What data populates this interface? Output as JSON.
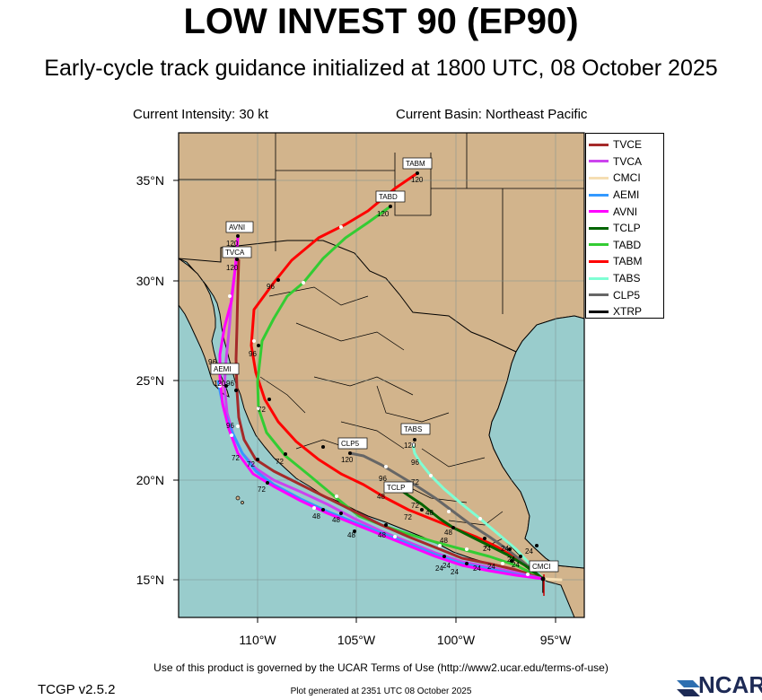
{
  "title": "LOW INVEST 90 (EP90)",
  "subtitle": "Early-cycle track guidance initialized at 1800 UTC, 08 October 2025",
  "current_intensity": "Current Intensity: 30 kt",
  "current_basin": "Current Basin: Northeast Pacific",
  "lon_ticks": [
    "110°W",
    "105°W",
    "100°W",
    "95°W"
  ],
  "lat_ticks": [
    "35°N",
    "30°N",
    "25°N",
    "20°N",
    "15°N"
  ],
  "legend": [
    {
      "name": "TVCE",
      "color": "#a52a2a"
    },
    {
      "name": "TVCA",
      "color": "#cc44ee"
    },
    {
      "name": "CMCI",
      "color": "#f5deb3"
    },
    {
      "name": "AEMI",
      "color": "#3399ff"
    },
    {
      "name": "AVNI",
      "color": "#ff00ff"
    },
    {
      "name": "TCLP",
      "color": "#006400"
    },
    {
      "name": "TABD",
      "color": "#33cc33"
    },
    {
      "name": "TABM",
      "color": "#ff0000"
    },
    {
      "name": "TABS",
      "color": "#7fffd4"
    },
    {
      "name": "CLP5",
      "color": "#666666"
    },
    {
      "name": "XTRP",
      "color": "#000000"
    }
  ],
  "tags": {
    "tabm": "TABM",
    "tabd": "TABD",
    "avni": "AVNI",
    "tvca": "TVCA",
    "aemi": "AEMI",
    "tabs": "TABS",
    "clp5": "CLP5",
    "tclp": "TCLP",
    "cmci": "CMCI"
  },
  "hour_labels": {
    "h120": "120",
    "h96": "96",
    "h72": "72",
    "h48": "48",
    "h24": "24"
  },
  "colors": {
    "ocean": "#99cccc",
    "land": "#d2b48c",
    "border": "#000000"
  },
  "footer": {
    "terms": "Use of this product is governed by the UCAR Terms of Use (http://www2.ucar.edu/terms-of-use)",
    "version": "TCGP v2.5.2",
    "generated": "Plot generated at 2351 UTC   08 October 2025",
    "logo_text": "NCAR"
  }
}
